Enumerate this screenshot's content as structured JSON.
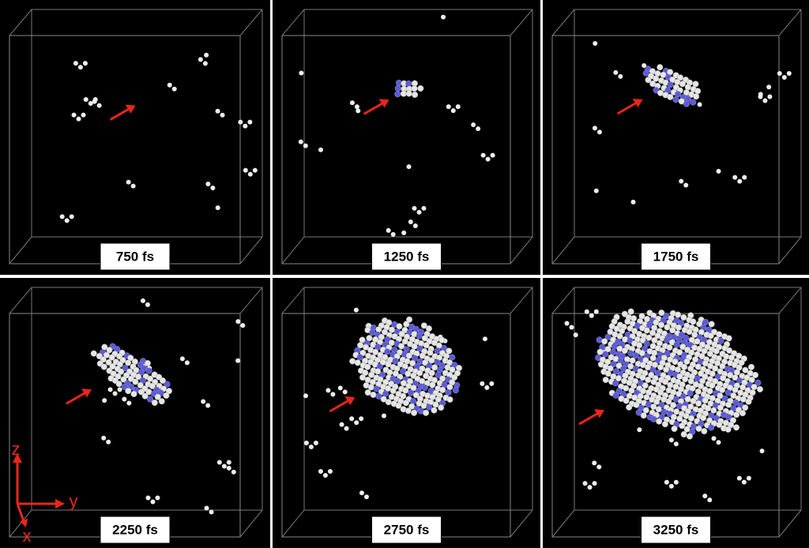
{
  "panels": [
    {
      "label": "750 fs"
    },
    {
      "label": "1250 fs"
    },
    {
      "label": "1750 fs"
    },
    {
      "label": "2250 fs"
    },
    {
      "label": "2750 fs"
    },
    {
      "label": "3250 fs"
    }
  ],
  "axes": {
    "z": "z",
    "y": "y",
    "x": "x"
  }
}
